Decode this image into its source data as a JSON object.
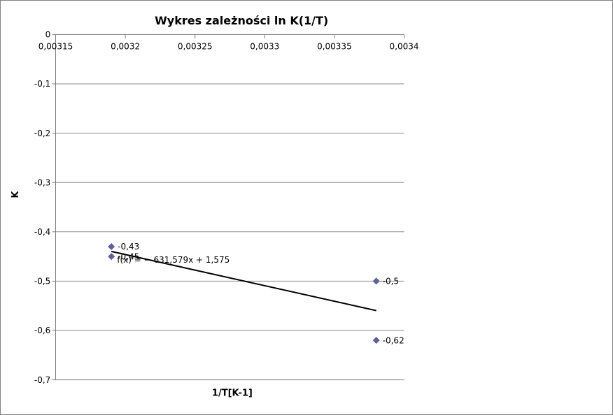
{
  "chart": {
    "title": "Wykres zależności ln K(1/T)",
    "x_axis_title": "1/T[K-1]",
    "y_axis_title": "K",
    "equation_label": "f(x) = − 631,579x + 1,575"
  },
  "chart_data": {
    "type": "scatter",
    "title": "Wykres zależności ln K(1/T)",
    "xlabel": "1/T[K-1]",
    "ylabel": "K",
    "xlim": [
      0.00315,
      0.0034
    ],
    "ylim": [
      -0.7,
      0
    ],
    "grid": "horizontal",
    "legend": "none",
    "marker": "diamond",
    "points": [
      {
        "x": 0.00319,
        "y": -0.43,
        "label": "-0,43"
      },
      {
        "x": 0.00319,
        "y": -0.45,
        "label": "-0,45"
      },
      {
        "x": 0.00338,
        "y": -0.5,
        "label": "-0,5"
      },
      {
        "x": 0.00338,
        "y": -0.62,
        "label": "-0,62"
      }
    ],
    "trendline": {
      "slope": -631.579,
      "intercept": 1.575,
      "x_start": 0.00319,
      "x_end": 0.00338,
      "label": "f(x) = − 631,579x + 1,575"
    },
    "x_ticks": [
      {
        "value": 0.00315,
        "label": "0,00315"
      },
      {
        "value": 0.0032,
        "label": "0,0032"
      },
      {
        "value": 0.00325,
        "label": "0,00325"
      },
      {
        "value": 0.0033,
        "label": "0,0033"
      },
      {
        "value": 0.00335,
        "label": "0,00335"
      },
      {
        "value": 0.0034,
        "label": "0,0034"
      }
    ],
    "y_ticks": [
      {
        "value": 0,
        "label": "0"
      },
      {
        "value": -0.1,
        "label": "-0,1"
      },
      {
        "value": -0.2,
        "label": "-0,2"
      },
      {
        "value": -0.3,
        "label": "-0,3"
      },
      {
        "value": -0.4,
        "label": "-0,4"
      },
      {
        "value": -0.5,
        "label": "-0,5"
      },
      {
        "value": -0.6,
        "label": "-0,6"
      },
      {
        "value": -0.7,
        "label": "-0,7"
      }
    ],
    "colors": {
      "marker": "#5f5f9e",
      "trendline": "#000000",
      "gridline": "#8a8a8a",
      "axis": "#7d7d7d",
      "border": "#818181",
      "text": "#000000",
      "background": "#ffffff"
    }
  }
}
